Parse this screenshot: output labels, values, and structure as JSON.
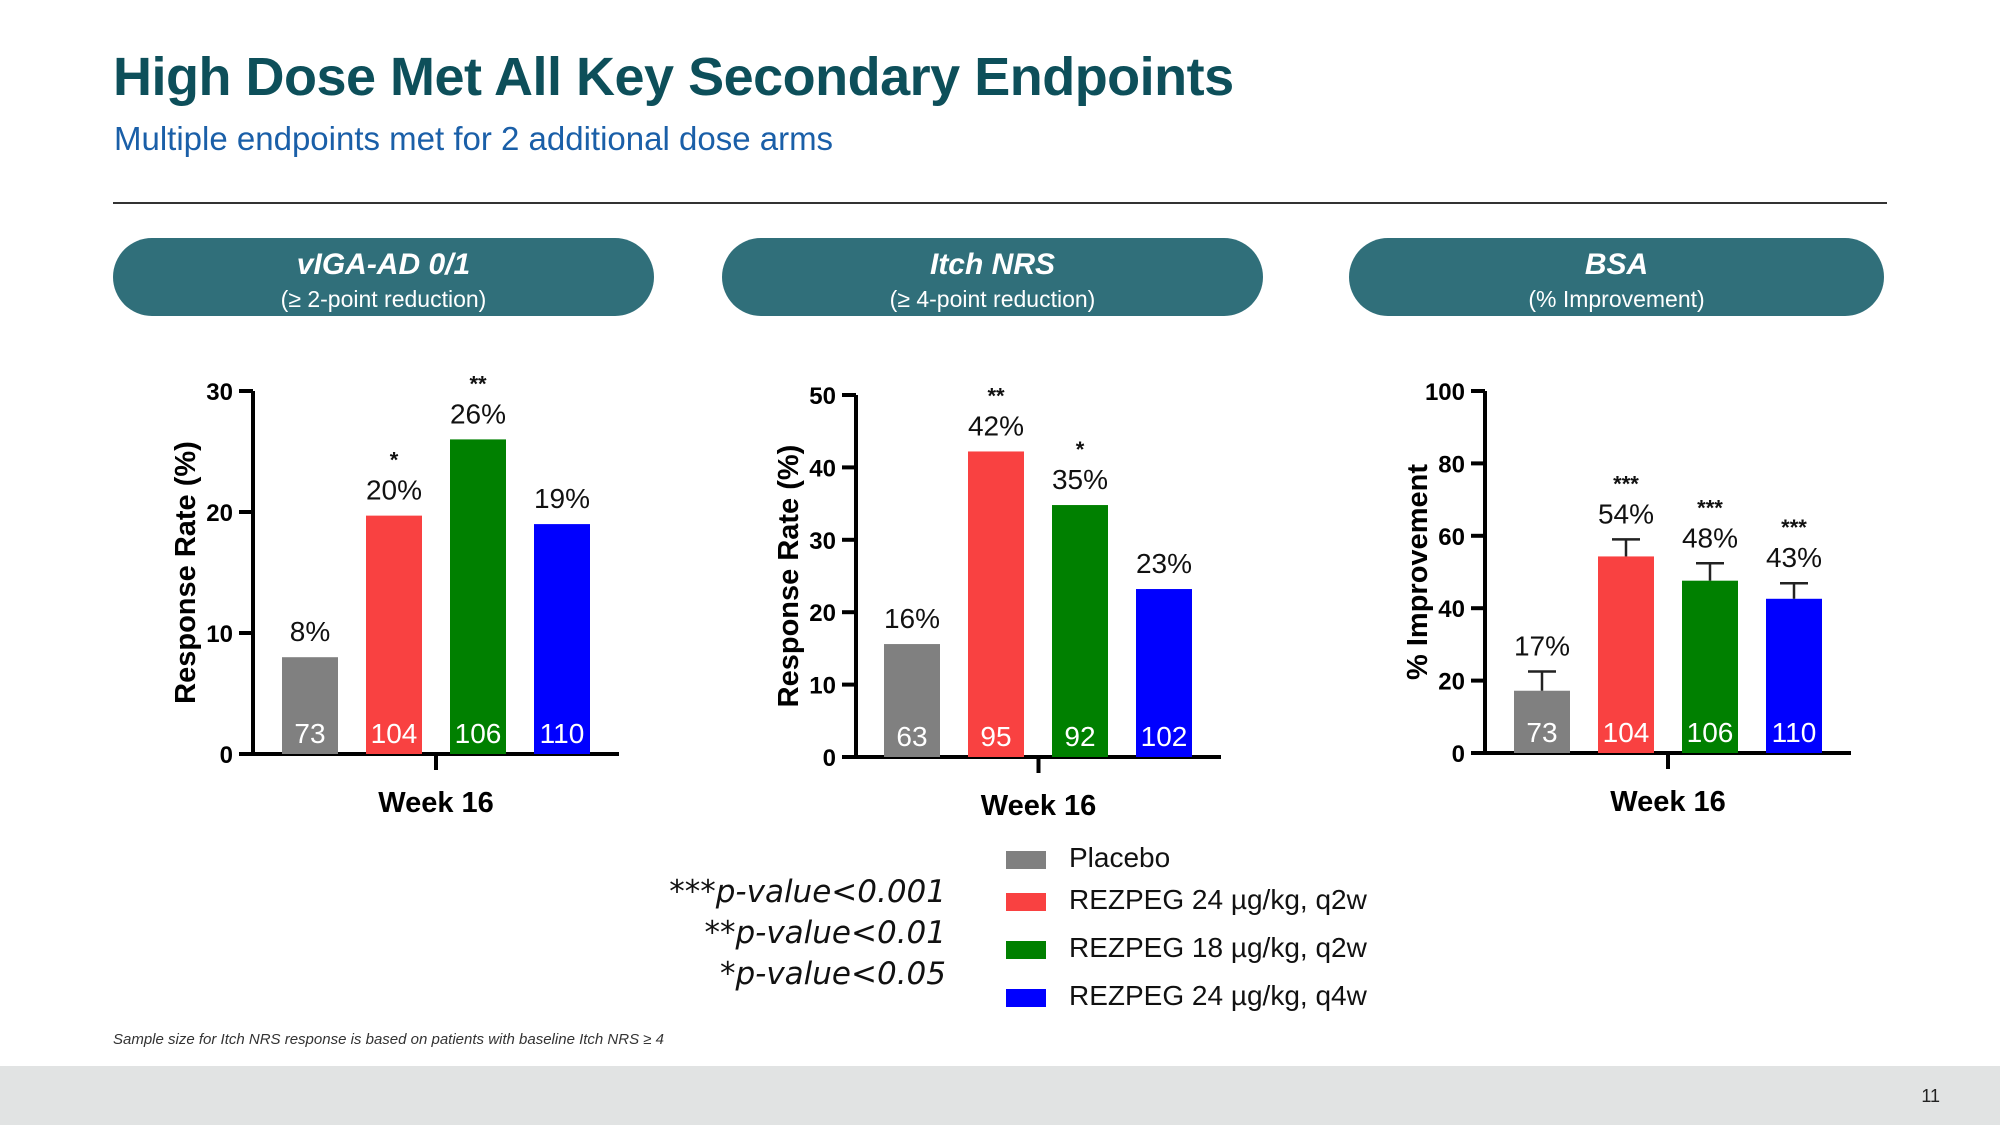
{
  "slide": {
    "title": "High Dose Met All Key Secondary Endpoints",
    "subtitle": "Multiple endpoints met for 2 additional dose arms",
    "footnote": "Sample size for Itch NRS response is based on patients with baseline Itch NRS ≥ 4",
    "page_number": "11"
  },
  "panels": [
    {
      "title": "vIGA-AD 0/1",
      "subtitle": "(≥ 2-point reduction)"
    },
    {
      "title": "Itch NRS",
      "subtitle": "(≥ 4-point reduction)"
    },
    {
      "title": "BSA",
      "subtitle": "(% Improvement)"
    }
  ],
  "pvalue_legend": [
    "***p-value<0.001",
    "**p-value<0.01",
    "*p-value<0.05"
  ],
  "legend": [
    {
      "label": "Placebo",
      "color": "#808080"
    },
    {
      "label": "REZPEG 24 µg/kg, q2w",
      "color": "#f94141"
    },
    {
      "label": "REZPEG 18 µg/kg, q2w",
      "color": "#008000"
    },
    {
      "label": "REZPEG 24 µg/kg, q4w",
      "color": "#0000ff"
    }
  ],
  "chart_data": [
    {
      "type": "bar",
      "ylabel": "Response Rate (%)",
      "xlabel": "Week 16",
      "ylim": [
        0,
        30
      ],
      "yticks": [
        0,
        10,
        20,
        30
      ],
      "series": [
        {
          "name": "Placebo",
          "value": 8,
          "label": "8%",
          "n": "73",
          "sig": "",
          "color": "#808080"
        },
        {
          "name": "REZPEG 24 µg/kg, q2w",
          "value": 19.7,
          "label": "20%",
          "n": "104",
          "sig": "*",
          "color": "#f94141"
        },
        {
          "name": "REZPEG 18 µg/kg, q2w",
          "value": 26,
          "label": "26%",
          "n": "106",
          "sig": "**",
          "color": "#008000"
        },
        {
          "name": "REZPEG 24 µg/kg, q4w",
          "value": 19,
          "label": "19%",
          "n": "110",
          "sig": "",
          "color": "#0000ff"
        }
      ]
    },
    {
      "type": "bar",
      "ylabel": "Response Rate (%)",
      "xlabel": "Week 16",
      "ylim": [
        0,
        50
      ],
      "yticks": [
        0,
        10,
        20,
        30,
        40,
        50
      ],
      "series": [
        {
          "name": "Placebo",
          "value": 15.6,
          "label": "16%",
          "n": "63",
          "sig": "",
          "color": "#808080"
        },
        {
          "name": "REZPEG 24 µg/kg, q2w",
          "value": 42.2,
          "label": "42%",
          "n": "95",
          "sig": "**",
          "color": "#f94141"
        },
        {
          "name": "REZPEG 18 µg/kg, q2w",
          "value": 34.8,
          "label": "35%",
          "n": "92",
          "sig": "*",
          "color": "#008000"
        },
        {
          "name": "REZPEG 24 µg/kg, q4w",
          "value": 23.2,
          "label": "23%",
          "n": "102",
          "sig": "",
          "color": "#0000ff"
        }
      ]
    },
    {
      "type": "bar",
      "ylabel": "% Improvement",
      "xlabel": "Week 16",
      "ylim": [
        0,
        100
      ],
      "yticks": [
        0,
        20,
        40,
        60,
        80,
        100
      ],
      "series": [
        {
          "name": "Placebo",
          "value": 17.2,
          "error": 5.3,
          "label": "17%",
          "n": "73",
          "sig": "",
          "color": "#808080"
        },
        {
          "name": "REZPEG 24 µg/kg, q2w",
          "value": 54.3,
          "error": 4.7,
          "label": "54%",
          "n": "104",
          "sig": "***",
          "color": "#f94141"
        },
        {
          "name": "REZPEG 18 µg/kg, q2w",
          "value": 47.6,
          "error": 4.8,
          "label": "48%",
          "n": "106",
          "sig": "***",
          "color": "#008000"
        },
        {
          "name": "REZPEG 24 µg/kg, q4w",
          "value": 42.6,
          "error": 4.3,
          "label": "43%",
          "n": "110",
          "sig": "***",
          "color": "#0000ff"
        }
      ]
    }
  ]
}
